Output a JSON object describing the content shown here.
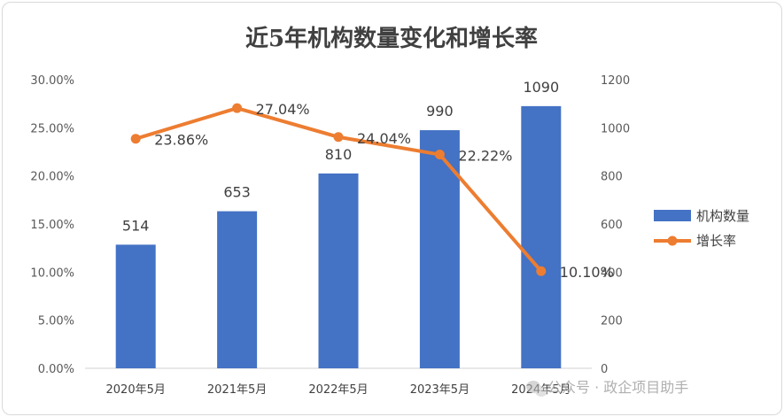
{
  "chart_data": {
    "type": "bar",
    "title": "近5年机构数量变化和增长率",
    "categories": [
      "2020年5月",
      "2021年5月",
      "2022年5月",
      "2023年5月",
      "2024年5月"
    ],
    "series": [
      {
        "name": "机构数量",
        "type": "bar",
        "axis": "right",
        "values": [
          514,
          653,
          810,
          990,
          1090
        ],
        "labels": [
          "514",
          "653",
          "810",
          "990",
          "1090"
        ],
        "color": "#4472C4"
      },
      {
        "name": "增长率",
        "type": "line",
        "axis": "left",
        "values": [
          0.2386,
          0.2704,
          0.2404,
          0.2222,
          0.101
        ],
        "labels": [
          "23.86%",
          "27.04%",
          "24.04%",
          "22.22%",
          "10.10%"
        ],
        "color": "#ED7D31"
      }
    ],
    "y_left": {
      "ylim": [
        0,
        0.3
      ],
      "ticks": [
        0,
        0.05,
        0.1,
        0.15,
        0.2,
        0.25,
        0.3
      ],
      "tick_labels": [
        "0.00%",
        "5.00%",
        "10.00%",
        "15.00%",
        "20.00%",
        "25.00%",
        "30.00%"
      ]
    },
    "y_right": {
      "ylim": [
        0,
        1200
      ],
      "ticks": [
        0,
        200,
        400,
        600,
        800,
        1000,
        1200
      ],
      "tick_labels": [
        "0",
        "200",
        "400",
        "600",
        "800",
        "1000",
        "1200"
      ]
    },
    "grid": false,
    "legend": "right"
  },
  "watermark": {
    "text": "公众号 · 政企项目助手",
    "icon": "wechat-icon"
  }
}
